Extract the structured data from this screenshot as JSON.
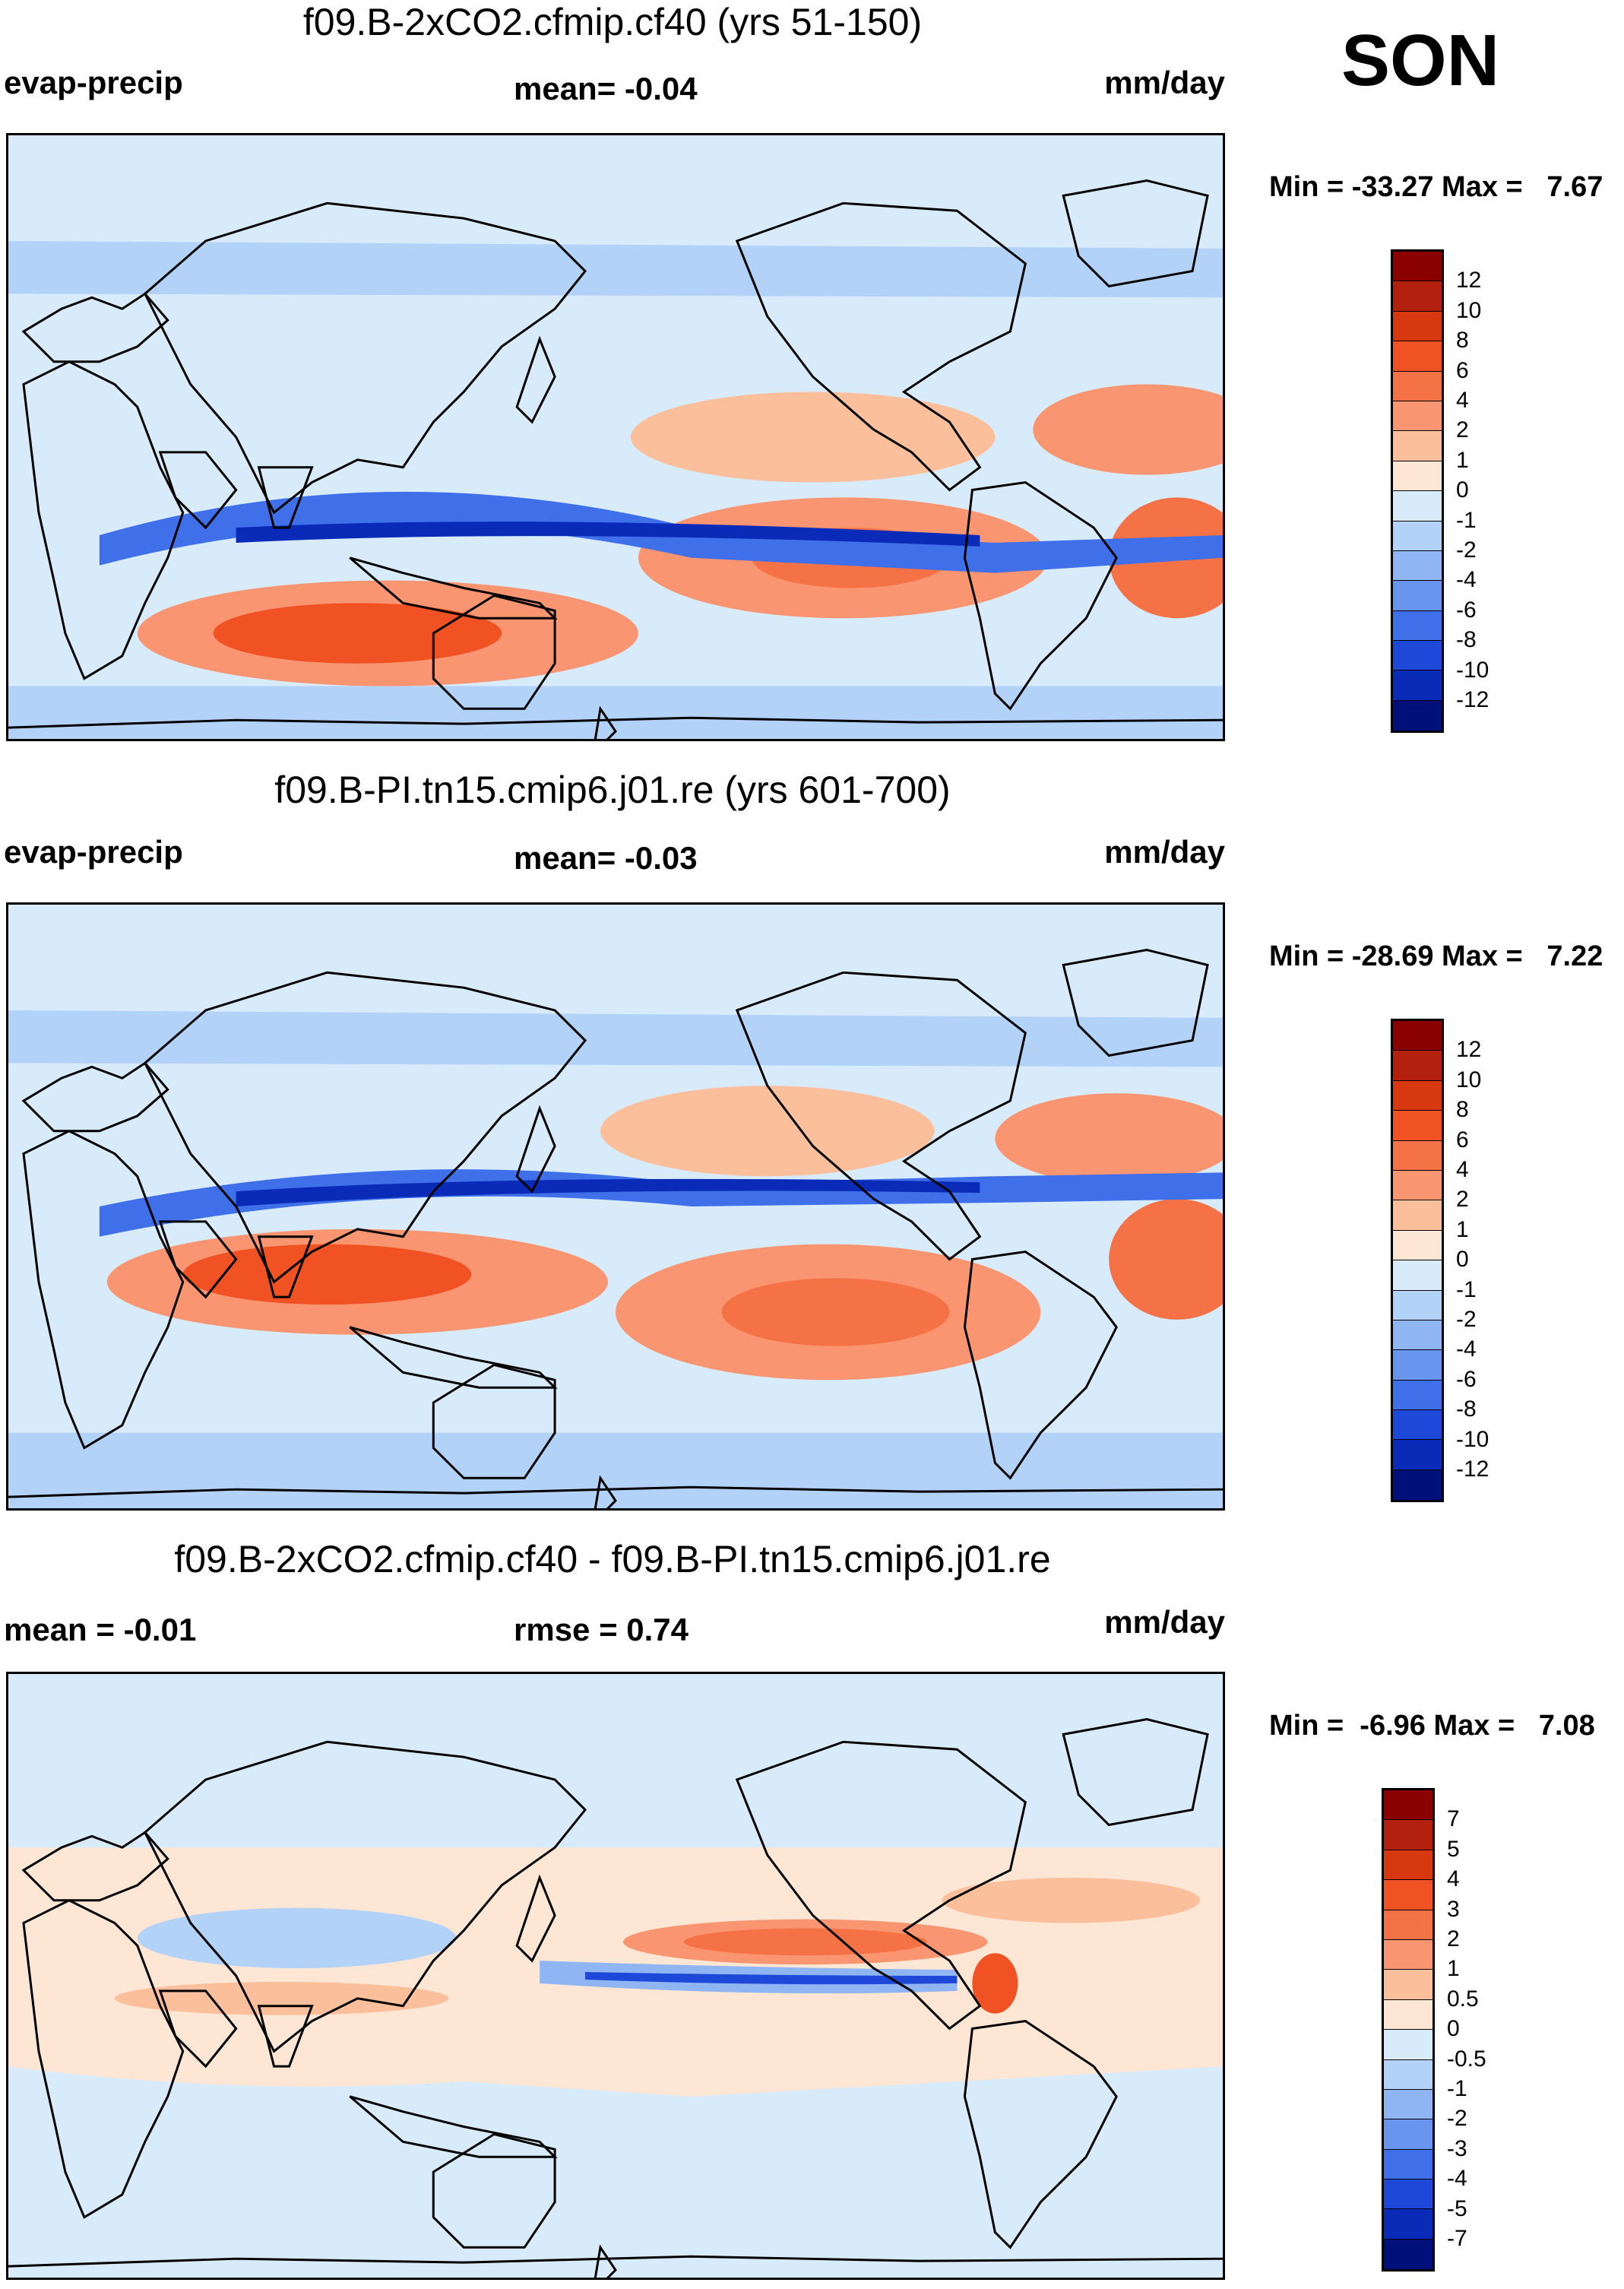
{
  "season": "SON",
  "panels": [
    {
      "title": "f09.B-2xCO2.cfmip.cf40 (yrs 51-150)",
      "left_label": "evap-precip",
      "center_label": "mean=  -0.04",
      "right_label": "mm/day",
      "minmax": "Min = -33.27 Max =   7.67",
      "levels": [
        "12",
        "10",
        "8",
        "6",
        "4",
        "2",
        "1",
        "0",
        "-1",
        "-2",
        "-4",
        "-6",
        "-8",
        "-10",
        "-12"
      ],
      "colors": [
        "#8b0000",
        "#b3200d",
        "#d7380f",
        "#f05224",
        "#f57246",
        "#f99570",
        "#fcbf9c",
        "#fde6d3",
        "#d8ebfa",
        "#b3d2f7",
        "#8fb5f2",
        "#6a95ee",
        "#3f6fe9",
        "#1e49d8",
        "#0a2ab8",
        "#00107a"
      ]
    },
    {
      "title": "f09.B-PI.tn15.cmip6.j01.re (yrs 601-700)",
      "left_label": "evap-precip",
      "center_label": "mean=  -0.03",
      "right_label": "mm/day",
      "minmax": "Min = -28.69 Max =   7.22",
      "levels": [
        "12",
        "10",
        "8",
        "6",
        "4",
        "2",
        "1",
        "0",
        "-1",
        "-2",
        "-4",
        "-6",
        "-8",
        "-10",
        "-12"
      ],
      "colors": [
        "#8b0000",
        "#b3200d",
        "#d7380f",
        "#f05224",
        "#f57246",
        "#f99570",
        "#fcbf9c",
        "#fde6d3",
        "#d8ebfa",
        "#b3d2f7",
        "#8fb5f2",
        "#6a95ee",
        "#3f6fe9",
        "#1e49d8",
        "#0a2ab8",
        "#00107a"
      ]
    },
    {
      "title": "f09.B-2xCO2.cfmip.cf40 - f09.B-PI.tn15.cmip6.j01.re",
      "left_label": "mean =  -0.01",
      "center_label": "rmse =    0.74",
      "right_label": "mm/day",
      "minmax": "Min =  -6.96 Max =   7.08",
      "levels": [
        "7",
        "5",
        "4",
        "3",
        "2",
        "1",
        "0.5",
        "0",
        "-0.5",
        "-1",
        "-2",
        "-3",
        "-4",
        "-5",
        "-7"
      ],
      "colors": [
        "#8b0000",
        "#b3200d",
        "#d7380f",
        "#f05224",
        "#f57246",
        "#f99570",
        "#fcbf9c",
        "#fde6d3",
        "#d8ebfa",
        "#b3d2f7",
        "#8fb5f2",
        "#6a95ee",
        "#3f6fe9",
        "#1e49d8",
        "#0a2ab8",
        "#00107a"
      ]
    }
  ]
}
